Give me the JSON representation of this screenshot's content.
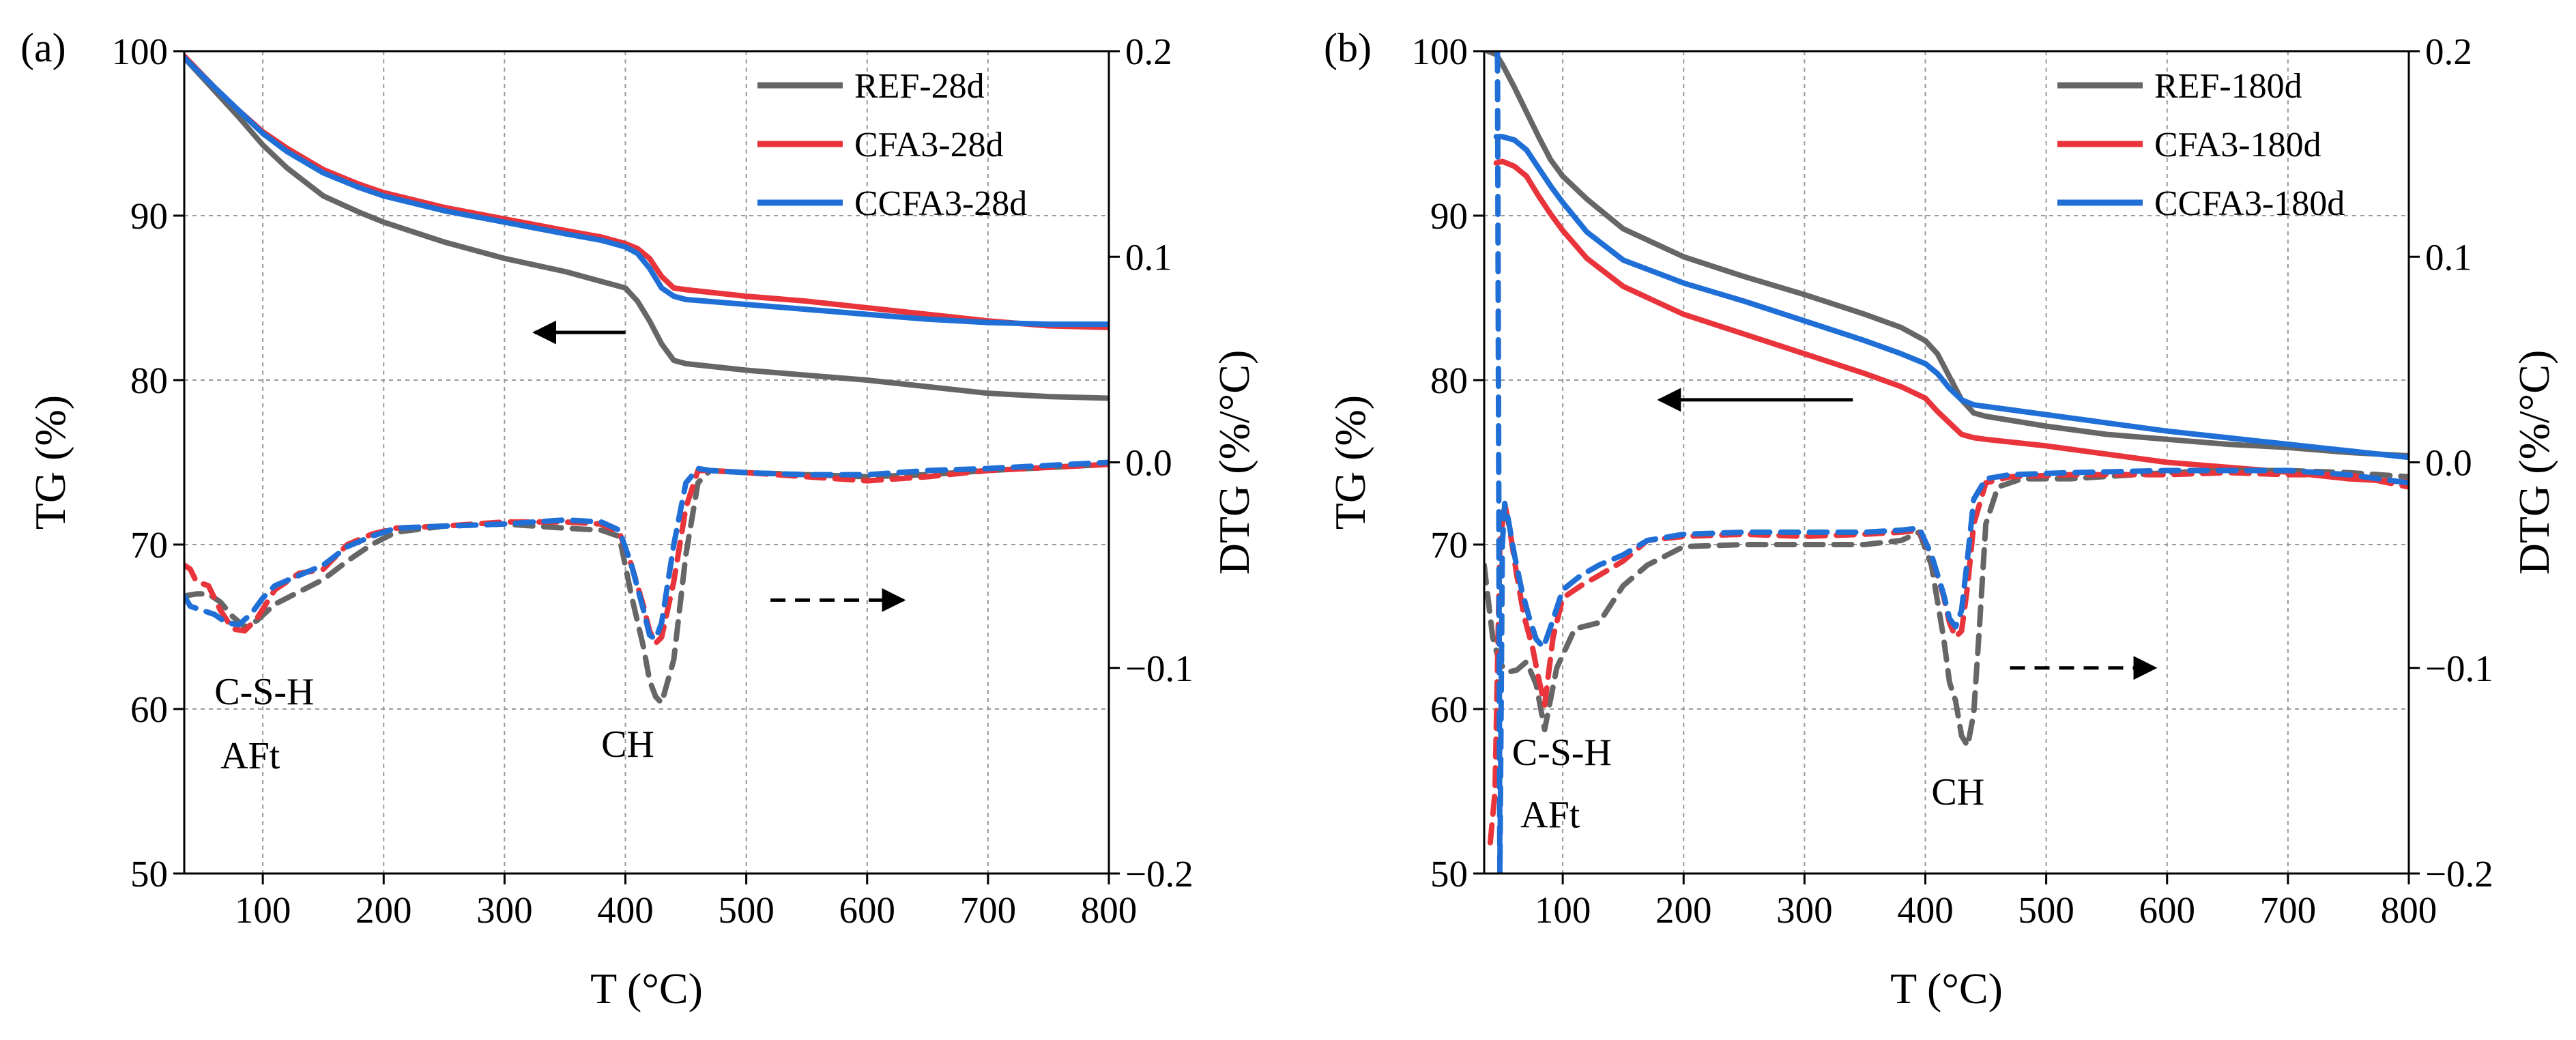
{
  "chart_data": [
    {
      "panel_label": "(a)",
      "type": "line",
      "xlabel": "T (°C)",
      "ylabel": "TG (%)",
      "y2label": "DTG (%/°C)",
      "xlim": [
        35,
        800
      ],
      "ylim": [
        50,
        100
      ],
      "y2lim": [
        -0.2,
        0.2
      ],
      "xticks": [
        "100",
        "200",
        "300",
        "400",
        "500",
        "600",
        "700",
        "800"
      ],
      "xtick_values": [
        100,
        200,
        300,
        400,
        500,
        600,
        700,
        800
      ],
      "yticks": [
        "50",
        "60",
        "70",
        "80",
        "90",
        "100"
      ],
      "ytick_values": [
        50,
        60,
        70,
        80,
        90,
        100
      ],
      "y2ticks": [
        "−0.2",
        "−0.1",
        "0.0",
        "0.1",
        "0.2"
      ],
      "y2tick_values": [
        -0.2,
        -0.1,
        0.0,
        0.1,
        0.2
      ],
      "grid": true,
      "legend_position": "top-right",
      "annotations": [
        {
          "text": "C-S-H",
          "x": 60,
          "y": 60.3
        },
        {
          "text": "AFt",
          "x": 65,
          "y": 56.4
        },
        {
          "text": "CH",
          "x": 380,
          "y": 57.1
        }
      ],
      "arrows": [
        {
          "direction": "left",
          "axis": "TG",
          "from": [
            400,
            82.9
          ],
          "to": [
            325,
            82.9
          ]
        },
        {
          "direction": "right",
          "axis": "DTG",
          "from": [
            520,
            -0.067
          ],
          "to": [
            630,
            -0.067
          ]
        }
      ],
      "series": [
        {
          "name": "REF-28d",
          "kind": "TG",
          "color": "#666666",
          "x": [
            35,
            60,
            80,
            100,
            120,
            150,
            180,
            200,
            250,
            300,
            350,
            380,
            400,
            410,
            420,
            430,
            440,
            450,
            500,
            550,
            600,
            650,
            700,
            750,
            800
          ],
          "y": [
            99.6,
            97.6,
            96.0,
            94.3,
            92.9,
            91.2,
            90.2,
            89.6,
            88.4,
            87.4,
            86.6,
            86.0,
            85.6,
            84.8,
            83.6,
            82.2,
            81.2,
            81.0,
            80.6,
            80.3,
            80.0,
            79.6,
            79.2,
            79.0,
            78.9
          ]
        },
        {
          "name": "CFA3-28d",
          "kind": "TG",
          "color": "#e8343a",
          "x": [
            35,
            60,
            80,
            100,
            120,
            150,
            180,
            200,
            250,
            300,
            350,
            380,
            400,
            410,
            420,
            430,
            440,
            450,
            500,
            550,
            600,
            650,
            700,
            750,
            800
          ],
          "y": [
            99.7,
            97.8,
            96.4,
            95.1,
            94.1,
            92.8,
            91.9,
            91.4,
            90.5,
            89.8,
            89.1,
            88.7,
            88.3,
            88.0,
            87.4,
            86.3,
            85.6,
            85.5,
            85.1,
            84.8,
            84.4,
            84.0,
            83.6,
            83.3,
            83.2
          ]
        },
        {
          "name": "CCFA3-28d",
          "kind": "TG",
          "color": "#1f6fd6",
          "x": [
            35,
            60,
            80,
            100,
            120,
            150,
            180,
            200,
            250,
            300,
            350,
            380,
            400,
            410,
            420,
            430,
            440,
            450,
            500,
            550,
            600,
            650,
            700,
            750,
            800
          ],
          "y": [
            99.6,
            97.8,
            96.4,
            95.0,
            93.9,
            92.6,
            91.7,
            91.2,
            90.3,
            89.6,
            88.9,
            88.5,
            88.1,
            87.7,
            86.8,
            85.6,
            85.1,
            84.9,
            84.6,
            84.3,
            84.0,
            83.7,
            83.5,
            83.4,
            83.4
          ]
        },
        {
          "name": "REF-28d DTG",
          "kind": "DTG",
          "color": "#666666",
          "x": [
            35,
            45,
            55,
            65,
            75,
            85,
            95,
            110,
            130,
            150,
            170,
            190,
            210,
            250,
            300,
            350,
            380,
            395,
            405,
            415,
            420,
            425,
            430,
            440,
            450,
            460,
            470,
            500,
            550,
            600,
            650,
            700,
            800
          ],
          "y": [
            -0.065,
            -0.064,
            -0.064,
            -0.068,
            -0.075,
            -0.08,
            -0.077,
            -0.069,
            -0.063,
            -0.057,
            -0.048,
            -0.04,
            -0.034,
            -0.031,
            -0.03,
            -0.032,
            -0.033,
            -0.036,
            -0.065,
            -0.09,
            -0.106,
            -0.114,
            -0.117,
            -0.096,
            -0.045,
            -0.01,
            -0.004,
            -0.005,
            -0.006,
            -0.007,
            -0.006,
            -0.004,
            -0.001
          ]
        },
        {
          "name": "CFA3-28d DTG",
          "kind": "DTG",
          "color": "#e8343a",
          "x": [
            35,
            40,
            45,
            55,
            65,
            75,
            85,
            95,
            110,
            130,
            150,
            170,
            190,
            210,
            250,
            300,
            350,
            380,
            395,
            405,
            415,
            420,
            425,
            430,
            440,
            450,
            460,
            470,
            500,
            550,
            600,
            650,
            700,
            800
          ],
          "y": [
            -0.05,
            -0.052,
            -0.058,
            -0.06,
            -0.072,
            -0.081,
            -0.082,
            -0.076,
            -0.062,
            -0.054,
            -0.052,
            -0.04,
            -0.035,
            -0.032,
            -0.031,
            -0.029,
            -0.029,
            -0.03,
            -0.034,
            -0.05,
            -0.07,
            -0.082,
            -0.088,
            -0.085,
            -0.058,
            -0.022,
            -0.004,
            -0.004,
            -0.005,
            -0.007,
            -0.009,
            -0.007,
            -0.004,
            -0.001
          ]
        },
        {
          "name": "CCFA3-28d DTG",
          "kind": "DTG",
          "color": "#1f6fd6",
          "x": [
            35,
            40,
            50,
            60,
            70,
            80,
            90,
            100,
            110,
            130,
            150,
            170,
            190,
            210,
            250,
            300,
            350,
            380,
            395,
            405,
            415,
            420,
            425,
            430,
            440,
            450,
            460,
            470,
            500,
            550,
            600,
            650,
            700,
            800
          ],
          "y": [
            -0.065,
            -0.07,
            -0.072,
            -0.074,
            -0.078,
            -0.079,
            -0.074,
            -0.066,
            -0.06,
            -0.055,
            -0.05,
            -0.041,
            -0.036,
            -0.032,
            -0.031,
            -0.03,
            -0.028,
            -0.029,
            -0.033,
            -0.05,
            -0.072,
            -0.084,
            -0.086,
            -0.078,
            -0.04,
            -0.01,
            -0.003,
            -0.004,
            -0.005,
            -0.006,
            -0.006,
            -0.004,
            -0.003,
            0.0
          ]
        }
      ]
    },
    {
      "panel_label": "(b)",
      "type": "line",
      "xlabel": "T (°C)",
      "ylabel": "TG (%)",
      "y2label": "DTG (%/°C)",
      "xlim": [
        35,
        800
      ],
      "ylim": [
        50,
        100
      ],
      "y2lim": [
        -0.2,
        0.2
      ],
      "xticks": [
        "100",
        "200",
        "300",
        "400",
        "500",
        "600",
        "700",
        "800"
      ],
      "xtick_values": [
        100,
        200,
        300,
        400,
        500,
        600,
        700,
        800
      ],
      "yticks": [
        "50",
        "60",
        "70",
        "80",
        "90",
        "100"
      ],
      "ytick_values": [
        50,
        60,
        70,
        80,
        90,
        100
      ],
      "y2ticks": [
        "−0.2",
        "−0.1",
        "0.0",
        "0.1",
        "0.2"
      ],
      "y2tick_values": [
        -0.2,
        -0.1,
        0.0,
        0.1,
        0.2
      ],
      "grid": true,
      "legend_position": "top-right",
      "annotations": [
        {
          "text": "C-S-H",
          "x": 58,
          "y": 56.6
        },
        {
          "text": "AFt",
          "x": 65,
          "y": 52.8
        },
        {
          "text": "CH",
          "x": 405,
          "y": 54.2
        }
      ],
      "arrows": [
        {
          "direction": "left",
          "axis": "TG",
          "from": [
            340,
            78.8
          ],
          "to": [
            180,
            78.8
          ]
        },
        {
          "direction": "right",
          "axis": "DTG",
          "from": [
            470,
            -0.1
          ],
          "to": [
            590,
            -0.1
          ]
        }
      ],
      "series": [
        {
          "name": "REF-180d",
          "kind": "TG",
          "color": "#666666",
          "x": [
            38,
            45,
            50,
            60,
            70,
            80,
            90,
            100,
            120,
            150,
            200,
            250,
            300,
            350,
            380,
            400,
            410,
            420,
            430,
            440,
            450,
            500,
            550,
            600,
            650,
            700,
            750,
            800
          ],
          "y": [
            100,
            99.8,
            99.2,
            97.8,
            96.3,
            94.8,
            93.4,
            92.4,
            91.0,
            89.2,
            87.5,
            86.3,
            85.2,
            84.0,
            83.2,
            82.4,
            81.6,
            80.2,
            78.8,
            78.0,
            77.8,
            77.2,
            76.7,
            76.4,
            76.1,
            75.9,
            75.6,
            75.4
          ]
        },
        {
          "name": "CFA3-180d",
          "kind": "TG",
          "color": "#e8343a",
          "x": [
            45,
            50,
            60,
            70,
            80,
            90,
            100,
            120,
            150,
            200,
            250,
            300,
            350,
            380,
            400,
            410,
            420,
            430,
            440,
            450,
            500,
            550,
            600,
            650,
            700,
            750,
            800
          ],
          "y": [
            93.2,
            93.3,
            93.0,
            92.4,
            91.2,
            90.1,
            89.1,
            87.4,
            85.7,
            84.0,
            82.8,
            81.6,
            80.4,
            79.6,
            78.9,
            78.1,
            77.4,
            76.7,
            76.5,
            76.4,
            76.0,
            75.5,
            75.0,
            74.7,
            74.4,
            74.0,
            73.8
          ]
        },
        {
          "name": "CCFA3-180d",
          "kind": "TG",
          "color": "#1f6fd6",
          "x": [
            45,
            50,
            60,
            70,
            80,
            90,
            100,
            120,
            150,
            200,
            250,
            300,
            350,
            380,
            400,
            410,
            420,
            430,
            440,
            450,
            500,
            550,
            600,
            650,
            700,
            750,
            800
          ],
          "y": [
            94.8,
            94.8,
            94.6,
            94.0,
            92.9,
            91.8,
            90.8,
            89.0,
            87.3,
            85.9,
            84.8,
            83.6,
            82.4,
            81.6,
            81.0,
            80.4,
            79.5,
            78.8,
            78.5,
            78.4,
            77.9,
            77.4,
            76.9,
            76.5,
            76.1,
            75.7,
            75.3
          ]
        },
        {
          "name": "REF-180d DTG",
          "kind": "DTG",
          "color": "#666666",
          "x": [
            35,
            38,
            42,
            48,
            55,
            62,
            70,
            78,
            85,
            95,
            110,
            130,
            150,
            170,
            200,
            250,
            300,
            350,
            380,
            395,
            405,
            415,
            420,
            425,
            430,
            435,
            440,
            445,
            450,
            460,
            480,
            520,
            600,
            650,
            700,
            750,
            800
          ],
          "y": [
            -0.05,
            -0.065,
            -0.085,
            -0.098,
            -0.102,
            -0.101,
            -0.097,
            -0.108,
            -0.13,
            -0.1,
            -0.081,
            -0.078,
            -0.06,
            -0.05,
            -0.041,
            -0.04,
            -0.04,
            -0.04,
            -0.038,
            -0.034,
            -0.05,
            -0.085,
            -0.107,
            -0.116,
            -0.133,
            -0.138,
            -0.122,
            -0.078,
            -0.03,
            -0.012,
            -0.008,
            -0.008,
            -0.005,
            -0.004,
            -0.004,
            -0.005,
            -0.007
          ]
        },
        {
          "name": "CFA3-180d DTG",
          "kind": "DTG",
          "color": "#e8343a",
          "x": [
            40,
            44,
            48,
            52,
            56,
            62,
            68,
            75,
            80,
            85,
            92,
            100,
            115,
            130,
            150,
            170,
            200,
            250,
            300,
            350,
            380,
            395,
            405,
            415,
            420,
            425,
            430,
            435,
            440,
            450,
            470,
            520,
            600,
            650,
            700,
            750,
            800
          ],
          "y": [
            -0.185,
            -0.16,
            -0.04,
            -0.02,
            -0.032,
            -0.055,
            -0.075,
            -0.09,
            -0.105,
            -0.118,
            -0.085,
            -0.066,
            -0.06,
            -0.055,
            -0.048,
            -0.038,
            -0.036,
            -0.035,
            -0.036,
            -0.035,
            -0.034,
            -0.033,
            -0.045,
            -0.065,
            -0.078,
            -0.085,
            -0.082,
            -0.06,
            -0.03,
            -0.01,
            -0.007,
            -0.006,
            -0.006,
            -0.005,
            -0.006,
            -0.006,
            -0.012
          ]
        },
        {
          "name": "CCFA3-180d DTG",
          "kind": "DTG",
          "color": "#1f6fd6",
          "x": [
            46,
            48,
            50,
            52,
            55,
            60,
            66,
            72,
            78,
            84,
            90,
            100,
            115,
            130,
            150,
            170,
            200,
            250,
            300,
            350,
            380,
            395,
            405,
            415,
            420,
            425,
            430,
            435,
            440,
            450,
            470,
            520,
            600,
            650,
            700,
            750,
            800
          ],
          "y": [
            0.199,
            -0.2,
            -0.04,
            -0.02,
            -0.028,
            -0.045,
            -0.062,
            -0.075,
            -0.086,
            -0.09,
            -0.08,
            -0.062,
            -0.055,
            -0.05,
            -0.045,
            -0.038,
            -0.035,
            -0.034,
            -0.034,
            -0.034,
            -0.033,
            -0.032,
            -0.045,
            -0.064,
            -0.076,
            -0.08,
            -0.072,
            -0.046,
            -0.018,
            -0.008,
            -0.006,
            -0.005,
            -0.004,
            -0.004,
            -0.004,
            -0.006,
            -0.01
          ]
        }
      ]
    }
  ]
}
